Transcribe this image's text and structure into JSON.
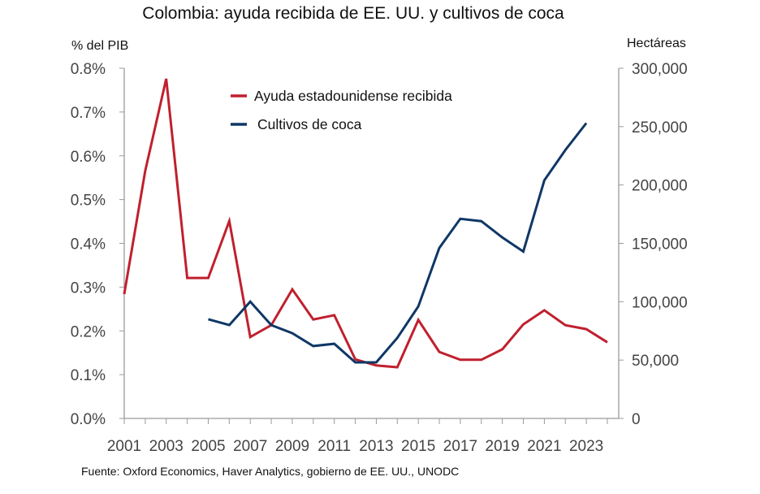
{
  "chart_data": {
    "type": "line",
    "title": "Colombia: ayuda recibida de EE. UU. y cultivos de coca",
    "ylabel_left": "% del PIB",
    "ylabel_right": "Hectáreas",
    "source": "Fuente: Oxford Economics, Haver Analytics, gobierno de EE. UU., UNODC",
    "x": [
      2001,
      2002,
      2003,
      2004,
      2005,
      2006,
      2007,
      2008,
      2009,
      2010,
      2011,
      2012,
      2013,
      2014,
      2015,
      2016,
      2017,
      2018,
      2019,
      2020,
      2021,
      2022,
      2023,
      2024
    ],
    "x_tick_labels": [
      "2001",
      "2003",
      "2005",
      "2007",
      "2009",
      "2011",
      "2013",
      "2015",
      "2017",
      "2019",
      "2021",
      "2023"
    ],
    "ylim_left": [
      0,
      0.8
    ],
    "y_left_ticks": [
      "0.0%",
      "0.1%",
      "0.2%",
      "0.3%",
      "0.4%",
      "0.5%",
      "0.6%",
      "0.7%",
      "0.8%"
    ],
    "ylim_right": [
      0,
      300000
    ],
    "y_right_ticks": [
      "0",
      "50,000",
      "100,000",
      "150,000",
      "200,000",
      "250,000",
      "300,000"
    ],
    "grid": false,
    "legend_position": "top-center",
    "series": [
      {
        "name": "Ayuda estadounidense recibida",
        "axis": "left",
        "color": "#C0202E",
        "values": [
          0.284,
          0.566,
          0.776,
          0.321,
          0.321,
          0.451,
          0.186,
          0.213,
          0.295,
          0.226,
          0.236,
          0.135,
          0.121,
          0.117,
          0.225,
          0.152,
          0.134,
          0.134,
          0.158,
          0.215,
          0.247,
          0.213,
          0.204,
          0.174
        ]
      },
      {
        "name": "Cultivos de coca",
        "axis": "right",
        "color": "#0F3766",
        "values": [
          null,
          null,
          null,
          null,
          85000,
          80000,
          100000,
          80000,
          73000,
          62000,
          64000,
          48000,
          48000,
          69000,
          96000,
          146000,
          171000,
          169000,
          155000,
          143000,
          204000,
          230000,
          253000,
          null
        ]
      }
    ]
  }
}
